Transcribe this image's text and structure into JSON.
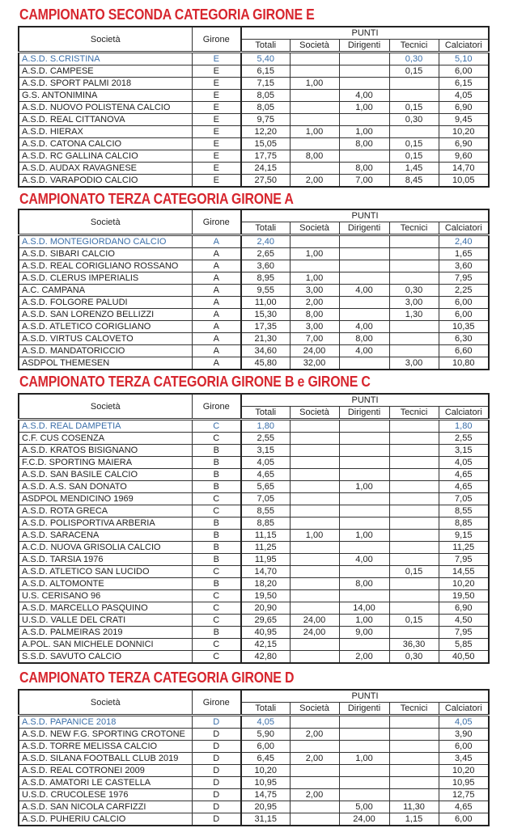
{
  "headers": {
    "societa": "Società",
    "girone": "Girone",
    "punti": "PUNTI",
    "totali": "Totali",
    "societa_pts": "Società",
    "dirigenti": "Dirigenti",
    "tecnici": "Tecnici",
    "calciatori": "Calciatori"
  },
  "colors": {
    "title": "#d7262e",
    "highlight_row": "#3a6ea8"
  },
  "sections": [
    {
      "title": "CAMPIONATO SECONDA CATEGORIA GIRONE E",
      "rows": [
        [
          "A.S.D. S.CRISTINA",
          "E",
          "5,40",
          "",
          "",
          "0,30",
          "5,10"
        ],
        [
          "A.S.D. CAMPESE",
          "E",
          "6,15",
          "",
          "",
          "0,15",
          "6,00"
        ],
        [
          "A.S.D. SPORT PALMI 2018",
          "E",
          "7,15",
          "1,00",
          "",
          "",
          "6,15"
        ],
        [
          "G.S. ANTONIMINA",
          "E",
          "8,05",
          "",
          "4,00",
          "",
          "4,05"
        ],
        [
          "A.S.D. NUOVO POLISTENA CALCIO",
          "E",
          "8,05",
          "",
          "1,00",
          "0,15",
          "6,90"
        ],
        [
          "A.S.D. REAL CITTANOVA",
          "E",
          "9,75",
          "",
          "",
          "0,30",
          "9,45"
        ],
        [
          "A.S.D. HIERAX",
          "E",
          "12,20",
          "1,00",
          "1,00",
          "",
          "10,20"
        ],
        [
          "A.S.D. CATONA CALCIO",
          "E",
          "15,05",
          "",
          "8,00",
          "0,15",
          "6,90"
        ],
        [
          "A.S.D. RC GALLINA CALCIO",
          "E",
          "17,75",
          "8,00",
          "",
          "0,15",
          "9,60"
        ],
        [
          "A.S.D. AUDAX RAVAGNESE",
          "E",
          "24,15",
          "",
          "8,00",
          "1,45",
          "14,70"
        ],
        [
          "A.S.D. VARAPODIO CALCIO",
          "E",
          "27,50",
          "2,00",
          "7,00",
          "8,45",
          "10,05"
        ]
      ]
    },
    {
      "title": "CAMPIONATO TERZA CATEGORIA GIRONE A",
      "rows": [
        [
          "A.S.D. MONTEGIORDANO CALCIO",
          "A",
          "2,40",
          "",
          "",
          "",
          "2,40"
        ],
        [
          "A.S.D. SIBARI CALCIO",
          "A",
          "2,65",
          "1,00",
          "",
          "",
          "1,65"
        ],
        [
          "A.S.D. REAL CORIGLIANO ROSSANO",
          "A",
          "3,60",
          "",
          "",
          "",
          "3,60"
        ],
        [
          "A.S.D. CLERUS IMPERIALIS",
          "A",
          "8,95",
          "1,00",
          "",
          "",
          "7,95"
        ],
        [
          "A.C. CAMPANA",
          "A",
          "9,55",
          "3,00",
          "4,00",
          "0,30",
          "2,25"
        ],
        [
          "A.S.D. FOLGORE PALUDI",
          "A",
          "11,00",
          "2,00",
          "",
          "3,00",
          "6,00"
        ],
        [
          "A.S.D. SAN LORENZO BELLIZZI",
          "A",
          "15,30",
          "8,00",
          "",
          "1,30",
          "6,00"
        ],
        [
          "A.S.D. ATLETICO CORIGLIANO",
          "A",
          "17,35",
          "3,00",
          "4,00",
          "",
          "10,35"
        ],
        [
          "A.S.D. VIRTUS CALOVETO",
          "A",
          "21,30",
          "7,00",
          "8,00",
          "",
          "6,30"
        ],
        [
          "A.S.D. MANDATORICCIO",
          "A",
          "34,60",
          "24,00",
          "4,00",
          "",
          "6,60"
        ],
        [
          "ASDPOL THEMESEN",
          "A",
          "45,80",
          "32,00",
          "",
          "3,00",
          "10,80"
        ]
      ]
    },
    {
      "title": "CAMPIONATO TERZA CATEGORIA GIRONE B e GIRONE C",
      "rows": [
        [
          "A.S.D. REAL DAMPETIA",
          "C",
          "1,80",
          "",
          "",
          "",
          "1,80"
        ],
        [
          "C.F. CUS COSENZA",
          "C",
          "2,55",
          "",
          "",
          "",
          "2,55"
        ],
        [
          "A.S.D. KRATOS BISIGNANO",
          "B",
          "3,15",
          "",
          "",
          "",
          "3,15"
        ],
        [
          "F.C.D. SPORTING MAIERA",
          "B",
          "4,05",
          "",
          "",
          "",
          "4,05"
        ],
        [
          "A.S.D. SAN BASILE CALCIO",
          "B",
          "4,65",
          "",
          "",
          "",
          "4,65"
        ],
        [
          "A.S.D. A.S. SAN DONATO",
          "B",
          "5,65",
          "",
          "1,00",
          "",
          "4,65"
        ],
        [
          "ASDPOL MENDICINO 1969",
          "C",
          "7,05",
          "",
          "",
          "",
          "7,05"
        ],
        [
          "A.S.D. ROTA GRECA",
          "C",
          "8,55",
          "",
          "",
          "",
          "8,55"
        ],
        [
          "A.S.D. POLISPORTIVA ARBERIA",
          "B",
          "8,85",
          "",
          "",
          "",
          "8,85"
        ],
        [
          "A.S.D. SARACENA",
          "B",
          "11,15",
          "1,00",
          "1,00",
          "",
          "9,15"
        ],
        [
          "A.C.D. NUOVA GRISOLIA CALCIO",
          "B",
          "11,25",
          "",
          "",
          "",
          "11,25"
        ],
        [
          "A.S.D. TARSIA 1976",
          "B",
          "11,95",
          "",
          "4,00",
          "",
          "7,95"
        ],
        [
          "A.S.D. ATLETICO SAN LUCIDO",
          "C",
          "14,70",
          "",
          "",
          "0,15",
          "14,55"
        ],
        [
          "A.S.D. ALTOMONTE",
          "B",
          "18,20",
          "",
          "8,00",
          "",
          "10,20"
        ],
        [
          "U.S. CERISANO 96",
          "C",
          "19,50",
          "",
          "",
          "",
          "19,50"
        ],
        [
          "A.S.D. MARCELLO PASQUINO",
          "C",
          "20,90",
          "",
          "14,00",
          "",
          "6,90"
        ],
        [
          "U.S.D. VALLE DEL CRATI",
          "C",
          "29,65",
          "24,00",
          "1,00",
          "0,15",
          "4,50"
        ],
        [
          "A.S.D. PALMEIRAS 2019",
          "B",
          "40,95",
          "24,00",
          "9,00",
          "",
          "7,95"
        ],
        [
          "A.POL. SAN MICHELE DONNICI",
          "C",
          "42,15",
          "",
          "",
          "36,30",
          "5,85"
        ],
        [
          "S.S.D. SAVUTO CALCIO",
          "C",
          "42,80",
          "",
          "2,00",
          "0,30",
          "40,50"
        ]
      ]
    },
    {
      "title": "CAMPIONATO TERZA CATEGORIA GIRONE D",
      "rows": [
        [
          "A.S.D. PAPANICE 2018",
          "D",
          "4,05",
          "",
          "",
          "",
          "4,05"
        ],
        [
          "A.S.D. NEW F.G. SPORTING CROTONE",
          "D",
          "5,90",
          "2,00",
          "",
          "",
          "3,90"
        ],
        [
          "A.S.D. TORRE MELISSA CALCIO",
          "D",
          "6,00",
          "",
          "",
          "",
          "6,00"
        ],
        [
          "A.S.D. SILANA FOOTBALL CLUB 2019",
          "D",
          "6,45",
          "2,00",
          "1,00",
          "",
          "3,45"
        ],
        [
          "A.S.D. REAL COTRONEI 2009",
          "D",
          "10,20",
          "",
          "",
          "",
          "10,20"
        ],
        [
          "A.S.D. AMATORI LE CASTELLA",
          "D",
          "10,95",
          "",
          "",
          "",
          "10,95"
        ],
        [
          "U.S.D. CRUCOLESE 1976",
          "D",
          "14,75",
          "2,00",
          "",
          "",
          "12,75"
        ],
        [
          "A.S.D. SAN NICOLA CARFIZZI",
          "D",
          "20,95",
          "",
          "5,00",
          "11,30",
          "4,65"
        ],
        [
          "A.S.D. PUHERIU CALCIO",
          "D",
          "31,15",
          "",
          "24,00",
          "1,15",
          "6,00"
        ]
      ]
    }
  ]
}
